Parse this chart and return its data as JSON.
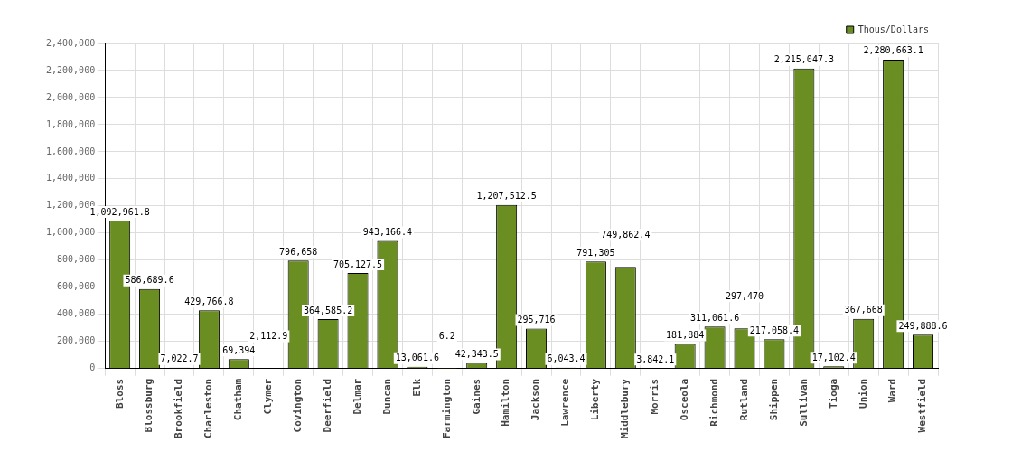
{
  "chart_data": {
    "type": "bar",
    "categories": [
      "Bloss",
      "Blossburg",
      "Brookfield",
      "Charleston",
      "Chatham",
      "Clymer",
      "Covington",
      "Deerfield",
      "Delmar",
      "Duncan",
      "Elk",
      "Farmington",
      "Gaines",
      "Hamilton",
      "Jackson",
      "Lawrence",
      "Liberty",
      "Middlebury",
      "Morris",
      "Osceola",
      "Richmond",
      "Rutland",
      "Shippen",
      "Sullivan",
      "Tioga",
      "Union",
      "Ward",
      "Westfield"
    ],
    "series": [
      {
        "name": "Thous/Dollars",
        "color": "#6b8e23",
        "values": [
          1092961.8,
          586689.6,
          7022.7,
          429766.8,
          69394,
          2112.9,
          796658,
          364585.2,
          705127.5,
          943166.4,
          13061.6,
          6.2,
          42343.5,
          1207512.5,
          295716,
          6043.4,
          791305,
          749862.4,
          3842.1,
          181884,
          311061.6,
          297470,
          217058.4,
          2215047.3,
          17102.4,
          367668,
          2280663.1,
          249888.6
        ],
        "value_labels": [
          "1,092,961.8",
          "586,689.6",
          "7,022.7",
          "429,766.8",
          "69,394",
          "2,112.9",
          "796,658",
          "364,585.2",
          "705,127.5",
          "943,166.4",
          "13,061.6",
          "6.2",
          "42,343.5",
          "1,207,512.5",
          "295,716",
          "6,043.4",
          "791,305",
          "749,862.4",
          "3,842.1",
          "181,884",
          "311,061.6",
          "297,470",
          "217,058.4",
          "2,215,047.3",
          "17,102.4",
          "367,668",
          "2,280,663.1",
          "249,888.6"
        ]
      }
    ],
    "ylim": [
      0,
      2400000
    ],
    "yticks": [
      {
        "value": 0,
        "label": "0"
      },
      {
        "value": 200000,
        "label": "200,000"
      },
      {
        "value": 400000,
        "label": "400,000"
      },
      {
        "value": 600000,
        "label": "600,000"
      },
      {
        "value": 800000,
        "label": "800,000"
      },
      {
        "value": 1000000,
        "label": "1,000,000"
      },
      {
        "value": 1200000,
        "label": "1,200,000"
      },
      {
        "value": 1400000,
        "label": "1,400,000"
      },
      {
        "value": 1600000,
        "label": "1,600,000"
      },
      {
        "value": 1800000,
        "label": "1,800,000"
      },
      {
        "value": 2000000,
        "label": "2,000,000"
      },
      {
        "value": 2200000,
        "label": "2,200,000"
      },
      {
        "value": 2400000,
        "label": "2,400,000"
      }
    ],
    "grid": true,
    "legend": "top right"
  }
}
